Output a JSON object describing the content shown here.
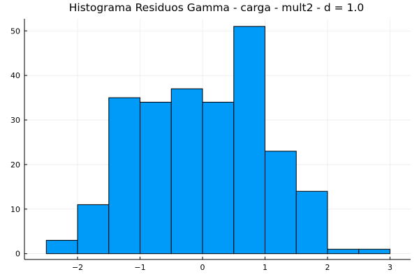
{
  "chart_data": {
    "type": "bar",
    "title": "Histograma Residuos Gamma - carga - mult2 - d = 1.0",
    "xlabel": "",
    "ylabel": "",
    "bin_edges": [
      -2.5,
      -2.0,
      -1.5,
      -1.0,
      -0.5,
      0.0,
      0.5,
      1.0,
      1.5,
      2.0,
      2.5,
      3.0
    ],
    "values": [
      3,
      11,
      35,
      34,
      37,
      34,
      51,
      23,
      14,
      1,
      1
    ],
    "xlim": [
      -2.85,
      3.33
    ],
    "ylim": [
      -1.3,
      52.7
    ],
    "xticks": [
      -2,
      -1,
      0,
      1,
      2,
      3
    ],
    "xtick_labels": [
      "−2",
      "−1",
      "0",
      "1",
      "2",
      "3"
    ],
    "yticks": [
      0,
      10,
      20,
      30,
      40,
      50
    ],
    "ytick_labels": [
      "0",
      "10",
      "20",
      "30",
      "40",
      "50"
    ],
    "grid": true,
    "legend": "none",
    "bar_color": "#009af9"
  }
}
